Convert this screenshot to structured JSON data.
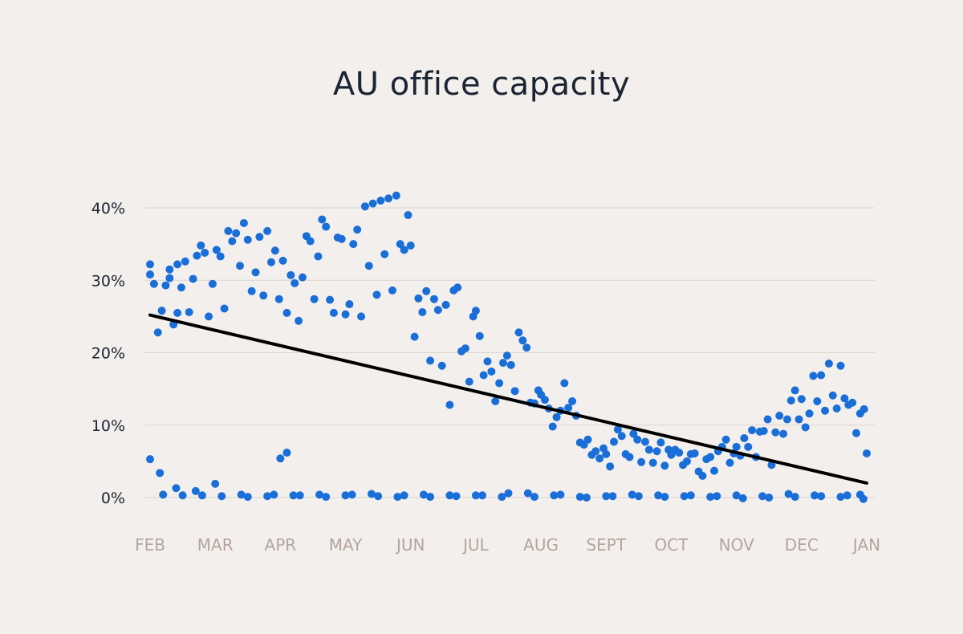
{
  "chart_data": {
    "type": "scatter",
    "title": "AU office capacity",
    "xlabel": "",
    "ylabel": "",
    "x_ticks": [
      "FEB",
      "MAR",
      "APR",
      "MAY",
      "JUN",
      "JUL",
      "AUG",
      "SEPT",
      "OCT",
      "NOV",
      "DEC",
      "JAN"
    ],
    "y_ticks": [
      "0%",
      "10%",
      "20%",
      "30%",
      "40%"
    ],
    "xlim": [
      0,
      11
    ],
    "ylim": [
      0,
      40
    ],
    "grid": "horizontal",
    "point_color": "#1a6ed8",
    "trend_color": "#000000",
    "trendline": {
      "start": [
        0,
        25.2
      ],
      "end": [
        11,
        2.0
      ]
    },
    "series": [
      {
        "x": [
          0.0,
          0.0,
          0.06,
          0.12,
          0.18,
          0.24,
          0.3,
          0.3,
          0.36,
          0.42,
          0.42,
          0.48,
          0.54,
          0.6,
          0.66,
          0.72,
          0.78,
          0.84,
          0.9,
          0.96,
          1.02,
          1.08,
          1.14,
          1.2,
          1.26,
          1.32,
          1.38,
          1.44,
          1.5,
          1.56,
          1.62,
          1.68,
          1.74,
          1.8,
          1.86,
          1.92,
          1.98,
          2.04,
          2.1,
          2.16,
          2.22,
          2.28,
          2.34,
          2.4,
          2.46,
          2.52,
          2.58,
          2.64,
          2.7,
          2.76,
          2.82,
          2.88,
          2.94,
          3.0,
          3.06,
          3.12,
          3.18,
          3.24,
          3.3,
          3.36,
          3.42,
          3.48,
          3.54,
          3.6,
          3.66,
          3.72,
          3.78,
          3.84,
          3.9,
          3.96,
          4.0,
          4.06,
          4.12,
          4.18,
          4.24,
          4.3,
          4.36,
          4.42,
          4.48,
          4.54,
          4.6,
          4.66,
          4.72,
          4.78,
          4.84,
          4.9,
          4.96,
          5.0,
          5.06,
          5.12,
          5.18,
          5.24,
          5.3,
          5.36,
          5.42,
          5.48,
          5.54,
          5.6,
          5.66,
          5.72,
          5.78,
          5.84,
          5.9,
          5.96,
          6.0,
          6.06,
          6.12,
          6.18,
          6.24,
          6.3,
          6.36,
          6.42,
          6.48,
          6.54,
          6.6,
          6.66,
          6.72,
          6.78,
          6.84,
          6.9,
          6.96,
          7.0,
          7.06,
          7.12,
          7.18,
          7.24,
          7.3,
          7.36,
          7.42,
          7.48,
          7.54,
          7.6,
          7.66,
          7.72,
          7.78,
          7.84,
          7.9,
          7.96,
          8.0,
          8.06,
          8.12,
          8.18,
          8.24,
          8.3,
          8.36,
          8.42,
          8.48,
          8.54,
          8.6,
          8.66,
          8.72,
          8.78,
          8.84,
          8.9,
          8.96,
          9.0,
          9.06,
          9.12,
          9.18,
          9.24,
          9.3,
          9.36,
          9.42,
          9.48,
          9.54,
          9.6,
          9.66,
          9.72,
          9.78,
          9.84,
          9.9,
          9.96,
          10.0,
          10.06,
          10.12,
          10.18,
          10.24,
          10.3,
          10.36,
          10.42,
          10.48,
          10.54,
          10.6,
          10.66,
          10.72,
          10.78,
          10.84,
          10.9,
          10.96,
          11.0,
          0.0,
          0.15,
          0.4,
          0.7,
          1.0,
          1.4,
          1.8,
          2.2,
          2.6,
          3.0,
          3.4,
          3.8,
          4.2,
          4.6,
          5.0,
          5.4,
          5.8,
          6.2,
          6.6,
          7.0,
          7.4,
          7.8,
          8.2,
          8.6,
          9.0,
          9.4,
          9.8,
          10.2,
          10.6,
          10.9,
          0.2,
          0.5,
          0.8,
          1.1,
          1.5,
          1.9,
          2.3,
          2.7,
          3.1,
          3.5,
          3.9,
          4.3,
          4.7,
          5.1,
          5.5,
          5.9,
          6.3,
          6.7,
          7.1,
          7.5,
          7.9,
          8.3,
          8.7,
          9.1,
          9.5,
          9.9,
          10.3,
          10.7,
          10.95,
          2.0,
          2.1
        ],
        "y": [
          32.2,
          30.8,
          29.5,
          22.8,
          25.8,
          29.3,
          30.3,
          31.5,
          23.9,
          32.2,
          25.5,
          29.0,
          32.6,
          25.6,
          30.2,
          33.4,
          34.8,
          33.8,
          25.0,
          29.5,
          34.2,
          33.3,
          26.1,
          36.8,
          35.4,
          36.5,
          32.0,
          37.9,
          35.6,
          28.5,
          31.1,
          36.0,
          27.9,
          36.8,
          32.5,
          34.1,
          27.4,
          32.7,
          25.5,
          30.7,
          29.6,
          24.4,
          30.4,
          36.1,
          35.4,
          27.4,
          33.3,
          38.4,
          37.4,
          27.3,
          25.5,
          35.9,
          35.7,
          25.3,
          26.7,
          35.0,
          37.0,
          25.0,
          40.2,
          32.0,
          40.6,
          28.0,
          41.0,
          33.6,
          41.3,
          28.6,
          41.7,
          35.0,
          34.2,
          39.0,
          34.8,
          22.2,
          27.5,
          25.6,
          28.5,
          18.9,
          27.4,
          25.9,
          18.2,
          26.6,
          12.8,
          28.6,
          29.0,
          20.2,
          20.6,
          16.0,
          25.0,
          25.8,
          22.3,
          16.9,
          18.8,
          17.4,
          13.3,
          15.8,
          18.6,
          19.6,
          18.3,
          14.7,
          22.8,
          21.7,
          20.7,
          13.1,
          13.0,
          14.8,
          14.2,
          13.5,
          12.3,
          9.8,
          11.1,
          12.0,
          15.8,
          12.4,
          13.3,
          11.3,
          7.6,
          7.3,
          8.0,
          5.9,
          6.4,
          5.4,
          6.8,
          6.0,
          4.3,
          7.7,
          9.4,
          8.5,
          6.0,
          5.6,
          8.8,
          8.0,
          4.9,
          7.7,
          6.6,
          4.8,
          6.4,
          7.6,
          4.4,
          6.6,
          5.9,
          6.6,
          6.2,
          4.5,
          5.0,
          6.0,
          6.1,
          3.6,
          3.0,
          5.3,
          5.6,
          3.7,
          6.4,
          7.0,
          8.0,
          4.8,
          6.1,
          7.0,
          5.8,
          8.2,
          7.0,
          9.3,
          5.6,
          9.1,
          9.2,
          10.8,
          4.5,
          9.0,
          11.3,
          8.8,
          10.8,
          13.4,
          14.8,
          10.8,
          13.6,
          9.7,
          11.6,
          16.8,
          13.3,
          16.9,
          12.0,
          18.5,
          14.1,
          12.3,
          18.2,
          13.7,
          12.8,
          13.1,
          8.9,
          11.6,
          12.2,
          6.1,
          5.3,
          3.4,
          1.3,
          0.9,
          1.9,
          0.4,
          0.2,
          0.3,
          0.4,
          0.3,
          0.5,
          0.1,
          0.4,
          0.3,
          0.3,
          0.1,
          0.6,
          0.3,
          0.1,
          0.2,
          0.4,
          0.3,
          0.2,
          0.1,
          0.3,
          0.2,
          0.5,
          0.3,
          0.1,
          0.4,
          0.4,
          0.3,
          0.3,
          0.2,
          0.1,
          0.4,
          0.3,
          0.1,
          0.4,
          0.2,
          0.3,
          0.1,
          0.2,
          0.3,
          0.6,
          0.1,
          0.4,
          0.0,
          0.2,
          0.2,
          0.1,
          0.3,
          0.2,
          -0.1,
          0.0,
          0.1,
          0.2,
          0.3,
          -0.2,
          5.4,
          6.2
        ]
      }
    ]
  }
}
